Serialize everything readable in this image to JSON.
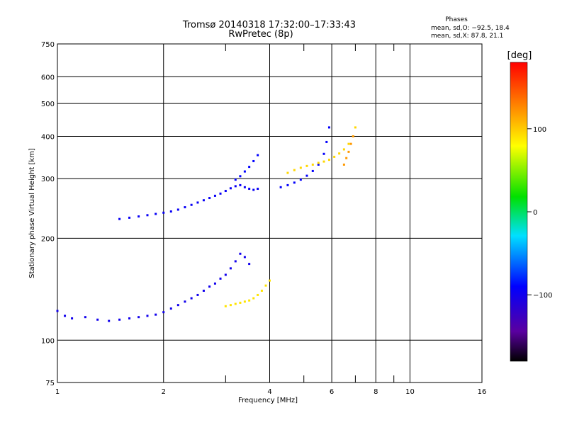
{
  "chart_data": {
    "type": "scatter",
    "title": "Tromsø 20140318 17:32:00–17:33:43",
    "subtitle": "RwPretec (8p)",
    "xlabel": "Frequency [MHz]",
    "ylabel": "Stationary phase Virtual Height [km]",
    "x_scale": "log",
    "y_scale": "log",
    "xlim": [
      1,
      16
    ],
    "ylim": [
      75,
      750
    ],
    "x_ticks": [
      1,
      2,
      4,
      6,
      8,
      10,
      16
    ],
    "x_tick_labels": [
      "1",
      "2",
      "4",
      "6",
      "8",
      "10",
      "16"
    ],
    "x_minor_ticks": [
      3,
      5,
      7,
      9
    ],
    "y_ticks": [
      75,
      100,
      200,
      300,
      400,
      500,
      600,
      750
    ],
    "y_tick_labels": [
      "75",
      "100",
      "200",
      "300",
      "400",
      "500",
      "600",
      "750"
    ],
    "grid": true,
    "stats": {
      "heading": "Phases",
      "line_o": "mean, sd,O: −92.5, 18.4",
      "line_x": "mean, sd,X:  87.8, 21.1"
    },
    "colorbar": {
      "label": "[deg]",
      "range": [
        -180,
        180
      ],
      "ticks": [
        100,
        0,
        -100
      ],
      "tick_labels": [
        "100",
        "0",
        "−100"
      ],
      "colormap": "rainbow: black (−180) → purple → blue → cyan → green → yellow → orange → red (180)"
    },
    "series": [
      {
        "name": "",
        "color_phase_deg": -100,
        "points": [
          [
            1.0,
            122
          ],
          [
            1.05,
            118
          ],
          [
            1.1,
            116
          ],
          [
            1.2,
            117
          ],
          [
            1.3,
            115
          ],
          [
            1.4,
            114
          ],
          [
            1.5,
            115
          ],
          [
            1.6,
            116
          ],
          [
            1.7,
            117
          ],
          [
            1.8,
            118
          ],
          [
            1.9,
            119
          ],
          [
            2.0,
            121
          ],
          [
            2.1,
            124
          ],
          [
            2.2,
            127
          ],
          [
            2.3,
            130
          ],
          [
            2.4,
            133
          ],
          [
            2.5,
            136
          ],
          [
            2.6,
            140
          ],
          [
            2.7,
            144
          ],
          [
            2.8,
            147
          ],
          [
            2.9,
            152
          ],
          [
            3.0,
            156
          ],
          [
            3.1,
            163
          ],
          [
            3.2,
            171
          ],
          [
            3.3,
            180
          ],
          [
            3.4,
            176
          ],
          [
            3.5,
            168
          ]
        ]
      },
      {
        "name": "",
        "color_phase_deg": -95,
        "points": [
          [
            1.5,
            228
          ],
          [
            1.6,
            230
          ],
          [
            1.7,
            232
          ],
          [
            1.8,
            234
          ],
          [
            1.9,
            236
          ],
          [
            2.0,
            238
          ],
          [
            2.1,
            240
          ],
          [
            2.2,
            243
          ],
          [
            2.3,
            247
          ],
          [
            2.4,
            251
          ],
          [
            2.5,
            255
          ],
          [
            2.6,
            259
          ],
          [
            2.7,
            263
          ],
          [
            2.8,
            267
          ],
          [
            2.9,
            271
          ],
          [
            3.0,
            276
          ],
          [
            3.1,
            281
          ],
          [
            3.2,
            285
          ],
          [
            3.3,
            287
          ],
          [
            3.4,
            283
          ],
          [
            3.5,
            280
          ],
          [
            3.6,
            278
          ],
          [
            3.7,
            280
          ]
        ]
      },
      {
        "name": "",
        "color_phase_deg": -90,
        "points": [
          [
            3.2,
            298
          ],
          [
            3.3,
            305
          ],
          [
            3.4,
            315
          ],
          [
            3.5,
            325
          ],
          [
            3.6,
            338
          ],
          [
            3.7,
            352
          ]
        ]
      },
      {
        "name": "",
        "color_phase_deg": -92,
        "points": [
          [
            4.3,
            283
          ],
          [
            4.5,
            287
          ],
          [
            4.7,
            292
          ],
          [
            4.9,
            298
          ],
          [
            5.1,
            306
          ],
          [
            5.3,
            316
          ],
          [
            5.5,
            330
          ],
          [
            5.7,
            355
          ],
          [
            5.8,
            385
          ],
          [
            5.9,
            425
          ]
        ]
      },
      {
        "name": "",
        "color_phase_deg": 90,
        "points": [
          [
            3.0,
            126
          ],
          [
            3.1,
            127
          ],
          [
            3.2,
            128
          ],
          [
            3.3,
            129
          ],
          [
            3.4,
            130
          ],
          [
            3.5,
            131
          ],
          [
            3.6,
            133
          ],
          [
            3.7,
            136
          ],
          [
            3.8,
            140
          ],
          [
            3.9,
            145
          ],
          [
            4.0,
            150
          ]
        ]
      },
      {
        "name": "",
        "color_phase_deg": 95,
        "points": [
          [
            4.5,
            312
          ],
          [
            4.7,
            318
          ],
          [
            4.9,
            323
          ],
          [
            5.1,
            327
          ],
          [
            5.3,
            330
          ],
          [
            5.5,
            334
          ],
          [
            5.7,
            337
          ],
          [
            5.9,
            341
          ],
          [
            6.1,
            348
          ],
          [
            6.3,
            356
          ],
          [
            6.5,
            366
          ],
          [
            6.7,
            380
          ],
          [
            6.9,
            400
          ],
          [
            7.0,
            425
          ]
        ]
      },
      {
        "name": "",
        "color_phase_deg": 120,
        "points": [
          [
            6.5,
            330
          ],
          [
            6.6,
            345
          ],
          [
            6.7,
            360
          ],
          [
            6.8,
            380
          ],
          [
            6.9,
            400
          ]
        ]
      }
    ]
  }
}
